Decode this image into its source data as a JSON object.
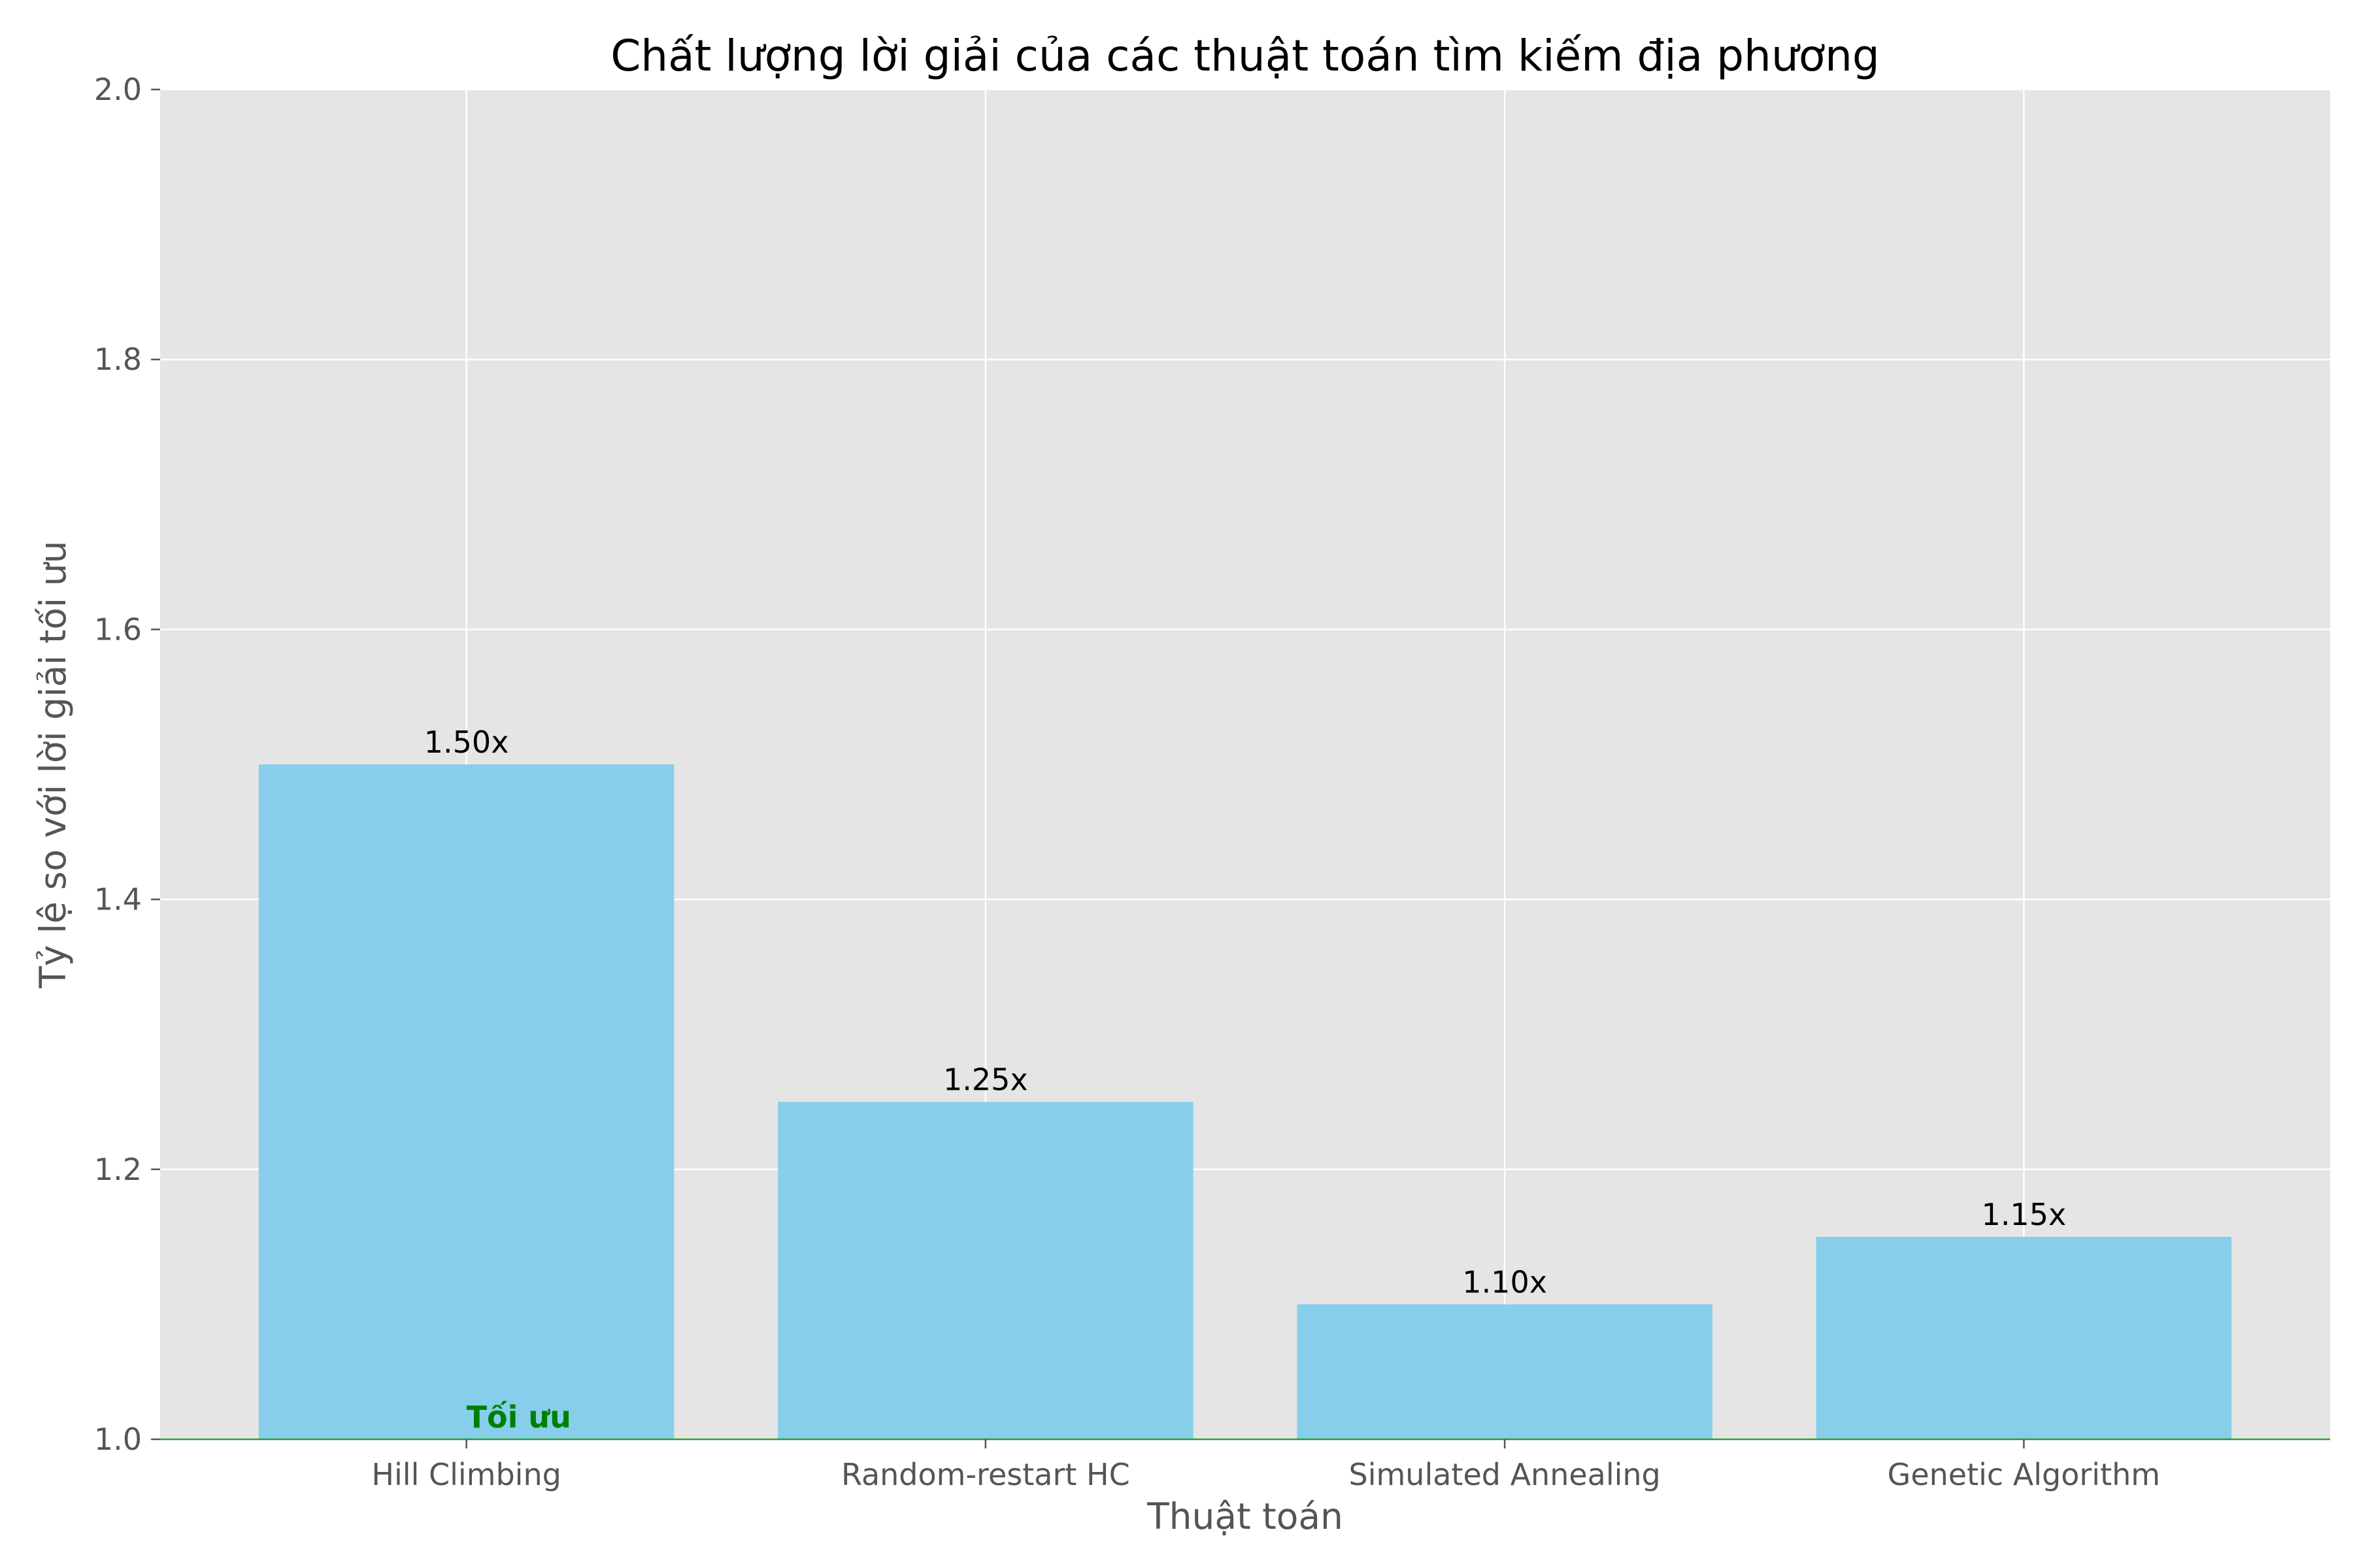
{
  "chart_data": {
    "type": "bar",
    "title": "Chất lượng lời giải của các thuật toán tìm kiếm địa phương",
    "xlabel": "Thuật toán",
    "ylabel": "Tỷ lệ so với lời giải tối ưu",
    "categories": [
      "Hill Climbing",
      "Random-restart HC",
      "Simulated Annealing",
      "Genetic Algorithm"
    ],
    "values": [
      1.5,
      1.25,
      1.1,
      1.15
    ],
    "value_labels": [
      "1.50x",
      "1.25x",
      "1.10x",
      "1.15x"
    ],
    "ylim": [
      1.0,
      2.0
    ],
    "yticks": [
      1.0,
      1.2,
      1.4,
      1.6,
      1.8,
      2.0
    ],
    "ytick_labels": [
      "1.0",
      "1.2",
      "1.4",
      "1.6",
      "1.8",
      "2.0"
    ],
    "grid": true,
    "reference_line": {
      "value": 1.0,
      "label": "Tối ưu",
      "color": "#2ca02c",
      "label_color": "#008000"
    },
    "colors": {
      "bar": "#87ceeb",
      "plot_background": "#e5e5e5",
      "grid": "#ffffff"
    }
  }
}
